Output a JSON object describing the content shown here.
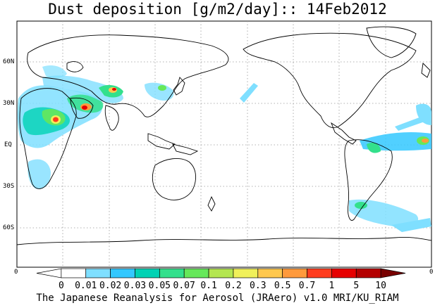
{
  "title": "Dust deposition [g/m2/day]:: 14Feb2012",
  "lat_labels": [
    "60N",
    "30N",
    "EQ",
    "30S",
    "60S"
  ],
  "corner_labels": [
    "0",
    "0"
  ],
  "colorbar": {
    "labels": [
      "0",
      "0.01",
      "0.02",
      "0.03",
      "0.05",
      "0.07",
      "0.1",
      "0.2",
      "0.3",
      "0.5",
      "0.7",
      "1",
      "5",
      "10"
    ],
    "colors": [
      "#ffffff",
      "#ffffff",
      "#7fdfff",
      "#33c8ff",
      "#00d2b4",
      "#33e08c",
      "#66e85a",
      "#b4e650",
      "#f0f05a",
      "#ffc84e",
      "#ff9a3c",
      "#ff3c1e",
      "#e60000",
      "#b40000",
      "#780000"
    ]
  },
  "footer": "The Japanese Reanalysis for Aerosol (JRAero) v1.0 MRI/KU_RIAM"
}
